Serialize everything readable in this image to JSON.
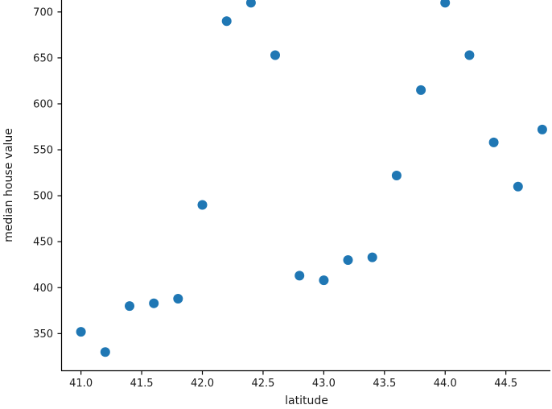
{
  "chart_data": {
    "type": "scatter",
    "title": "",
    "xlabel": "latitude",
    "ylabel": "median house value",
    "x": [
      41.0,
      41.2,
      41.4,
      41.6,
      41.8,
      42.0,
      42.2,
      42.4,
      42.6,
      42.8,
      43.0,
      43.2,
      43.4,
      43.6,
      43.8,
      44.0,
      44.2,
      44.4,
      44.6,
      44.8
    ],
    "y": [
      352,
      330,
      380,
      383,
      388,
      490,
      690,
      710,
      653,
      413,
      408,
      430,
      433,
      522,
      615,
      710,
      653,
      558,
      510,
      572
    ],
    "x_ticks": [
      41.0,
      41.5,
      42.0,
      42.5,
      43.0,
      43.5,
      44.0,
      44.5
    ],
    "x_tick_labels": [
      "41.0",
      "41.5",
      "42.0",
      "42.5",
      "43.0",
      "43.5",
      "44.0",
      "44.5"
    ],
    "y_ticks": [
      350,
      400,
      450,
      500,
      550,
      600,
      650,
      700
    ],
    "y_tick_labels": [
      "350",
      "400",
      "450",
      "500",
      "550",
      "600",
      "650",
      "700"
    ],
    "xlim": [
      40.84,
      44.87
    ],
    "ylim": [
      310,
      713
    ],
    "grid": false,
    "legend": "none",
    "marker_color": "#1f77b4",
    "marker_radius": 6,
    "axis_color": "#000000"
  }
}
